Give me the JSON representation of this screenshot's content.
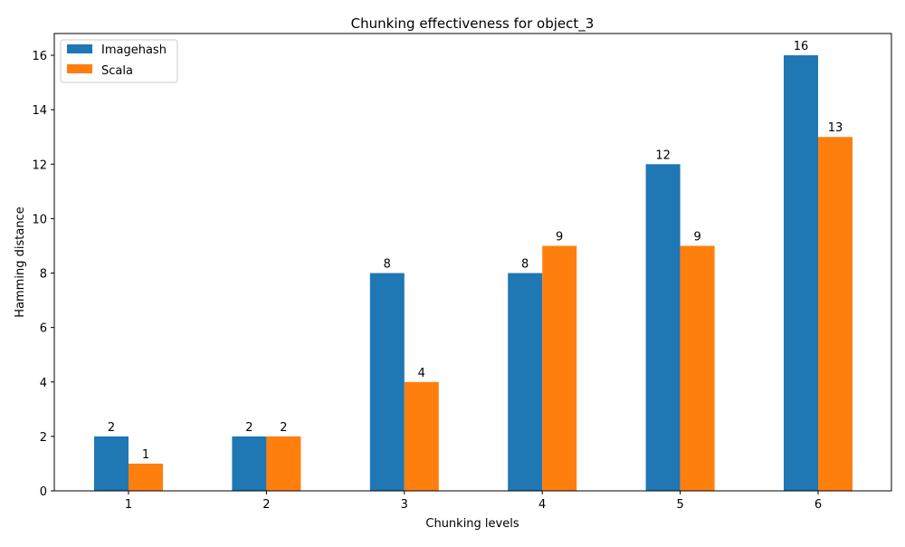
{
  "chart_data": {
    "type": "bar",
    "title": "Chunking effectiveness for object_3",
    "xlabel": "Chunking levels",
    "ylabel": "Hamming distance",
    "categories": [
      "1",
      "2",
      "3",
      "4",
      "5",
      "6"
    ],
    "series": [
      {
        "name": "Imagehash",
        "color": "#1f77b4",
        "values": [
          2,
          2,
          8,
          8,
          12,
          16
        ]
      },
      {
        "name": "Scala",
        "color": "#ff7f0e",
        "values": [
          1,
          2,
          4,
          9,
          9,
          13
        ]
      }
    ],
    "ylim": [
      0,
      16.8
    ],
    "yticks": [
      0,
      2,
      4,
      6,
      8,
      10,
      12,
      14,
      16
    ],
    "grid": false,
    "legend_position": "top-left",
    "data_labels": true
  }
}
